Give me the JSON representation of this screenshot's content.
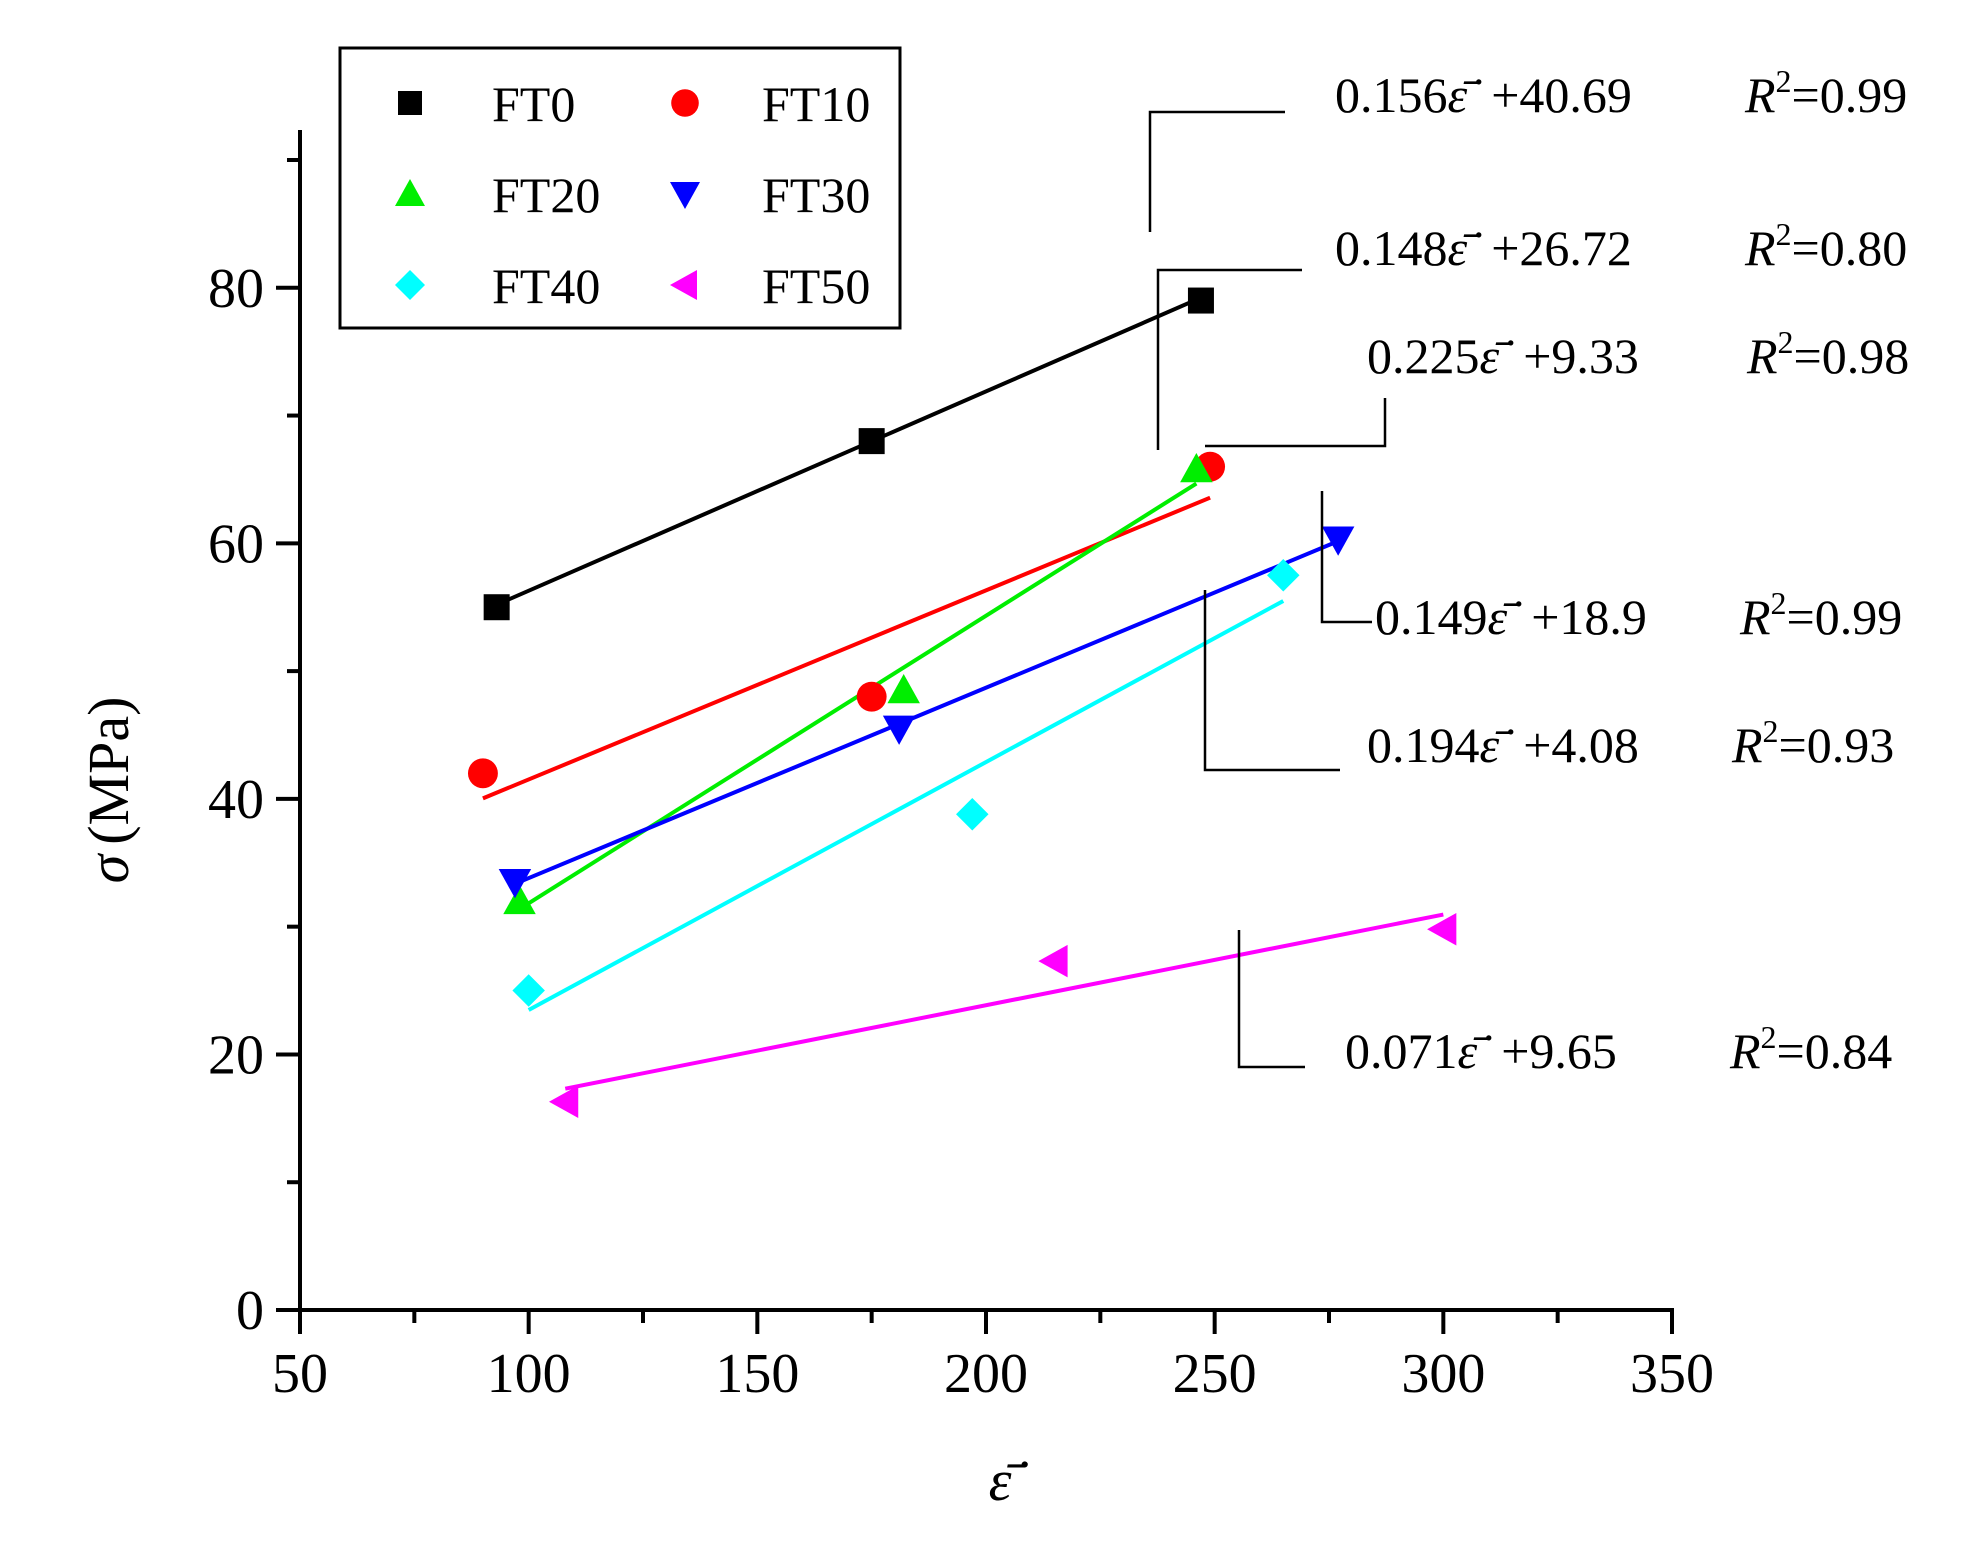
{
  "chart_data": {
    "type": "scatter",
    "title": "",
    "xlabel": "ε̇̄",
    "ylabel_symbol": "σ",
    "ylabel_unit": "(MPa)",
    "xlim": [
      50,
      350
    ],
    "ylim": [
      0,
      90
    ],
    "xticks": [
      50,
      100,
      150,
      200,
      250,
      300,
      350
    ],
    "yticks": [
      0,
      20,
      40,
      60,
      80
    ],
    "grid": false,
    "legend_position": "top-left",
    "series": [
      {
        "name": "FT0",
        "color": "#000000",
        "marker": "square",
        "points": [
          [
            93,
            55.0
          ],
          [
            175,
            68.0
          ],
          [
            247,
            79.0
          ]
        ],
        "fit": {
          "x": [
            93,
            247
          ],
          "slope": 0.156,
          "intercept": 40.69,
          "r2": "0.99",
          "slope_text": "0.156",
          "intercept_text": "+40.69",
          "r2_text": "=0.99"
        }
      },
      {
        "name": "FT10",
        "color": "#ff0000",
        "marker": "circle",
        "points": [
          [
            90,
            42.0
          ],
          [
            175,
            48.0
          ],
          [
            249,
            66.0
          ]
        ],
        "fit": {
          "x": [
            90,
            249
          ],
          "slope": 0.148,
          "intercept": 26.72,
          "r2": "0.80",
          "slope_text": "0.148",
          "intercept_text": "+26.72",
          "r2_text": "=0.80"
        }
      },
      {
        "name": "FT20",
        "color": "#00ee00",
        "marker": "triangle-up",
        "points": [
          [
            98,
            32.0
          ],
          [
            182,
            48.5
          ],
          [
            246,
            65.8
          ]
        ],
        "fit": {
          "x": [
            98,
            246
          ],
          "slope": 0.225,
          "intercept": 9.33,
          "r2": "0.98",
          "slope_text": "0.225",
          "intercept_text": "+9.33",
          "r2_text": "=0.98"
        }
      },
      {
        "name": "FT30",
        "color": "#0000ff",
        "marker": "triangle-down",
        "points": [
          [
            97,
            33.5
          ],
          [
            181,
            45.5
          ],
          [
            277,
            60.3
          ]
        ],
        "fit": {
          "x": [
            97,
            277
          ],
          "slope": 0.149,
          "intercept": 18.9,
          "r2": "0.99",
          "slope_text": "0.149",
          "intercept_text": "+18.9",
          "r2_text": "=0.99"
        }
      },
      {
        "name": "FT40",
        "color": "#00ffff",
        "marker": "diamond",
        "points": [
          [
            100,
            25.0
          ],
          [
            197,
            38.8
          ],
          [
            265,
            57.5
          ]
        ],
        "fit": {
          "x": [
            100,
            265
          ],
          "slope": 0.194,
          "intercept": 4.08,
          "r2": "0.93",
          "slope_text": "0.194",
          "intercept_text": "+4.08",
          "r2_text": "=0.93"
        }
      },
      {
        "name": "FT50",
        "color": "#ff00ff",
        "marker": "triangle-left",
        "points": [
          [
            108,
            16.3
          ],
          [
            215,
            27.3
          ],
          [
            300,
            29.8
          ]
        ],
        "fit": {
          "x": [
            108,
            300
          ],
          "slope": 0.071,
          "intercept": 9.65,
          "r2": "0.84",
          "slope_text": "0.071",
          "intercept_text": "+9.65",
          "r2_text": "=0.84"
        }
      }
    ]
  }
}
